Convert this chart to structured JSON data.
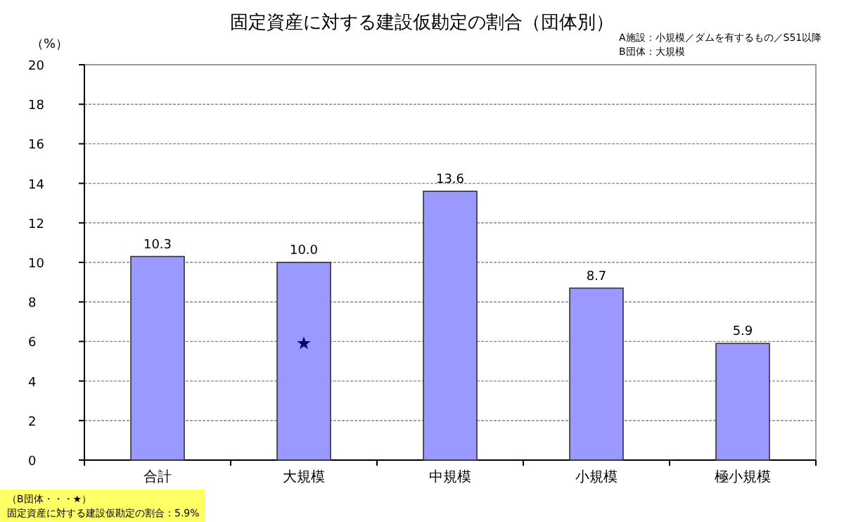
{
  "chart_data": {
    "type": "bar",
    "title": "固定資産に対する建設仮勘定の割合（団体別）",
    "ylabel": "（%）",
    "categories": [
      "合計",
      "大規模",
      "中規模",
      "小規模",
      "極小規模"
    ],
    "series": [
      {
        "color": "#9999ff",
        "values": [
          10.3,
          10.0,
          13.6,
          8.7,
          5.9
        ],
        "value_labels": [
          "10.3",
          "10.0",
          "13.6",
          "8.7",
          "5.9"
        ]
      },
      {
        "type": "scatter",
        "color": "#000080",
        "marker": "star",
        "x": [
          "大規模"
        ],
        "values": [
          5.9
        ]
      }
    ],
    "ylim": [
      0,
      20
    ],
    "yticks": [
      0,
      2,
      4,
      6,
      8,
      10,
      12,
      14,
      16,
      18,
      20
    ],
    "grid": "y",
    "annotations": [
      "A施設：小規模／ダムを有するもの／S51以降",
      "B団体：大規模",
      "（B団体・・・★）",
      "固定資産に対する建設仮勘定の割合：5.9%"
    ]
  }
}
